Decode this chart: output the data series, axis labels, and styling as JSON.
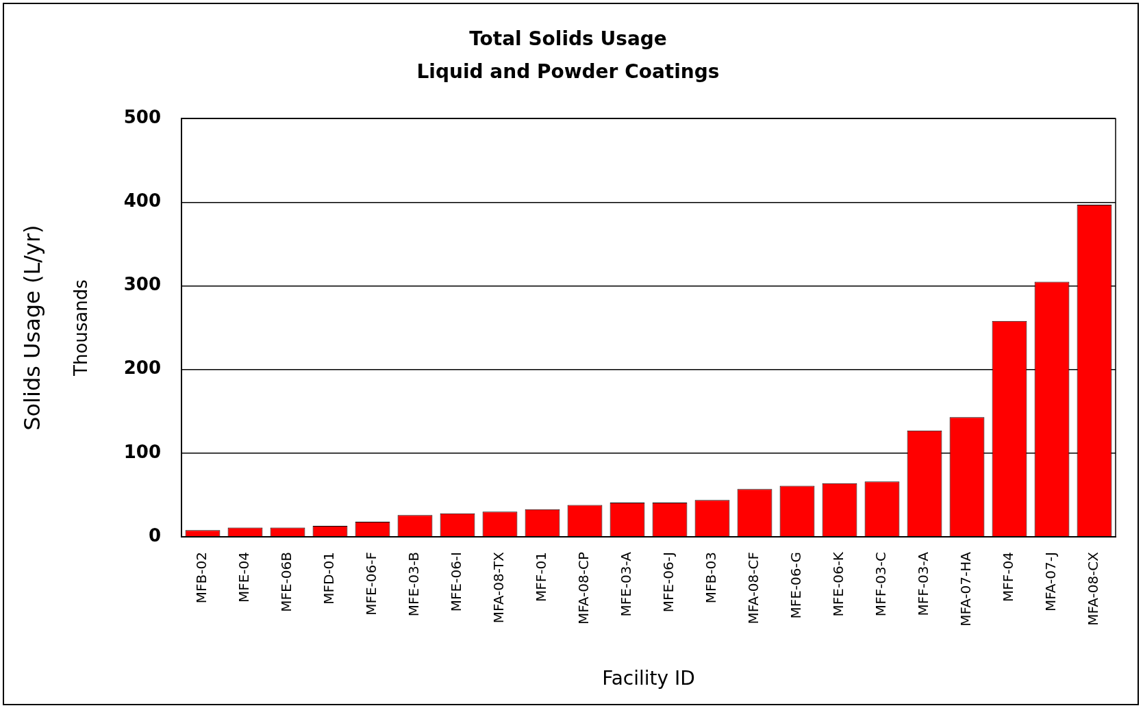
{
  "chart_data": {
    "type": "bar",
    "title": "Total Solids Usage",
    "subtitle": "Liquid and Powder Coatings",
    "xlabel": "Facility ID",
    "ylabel": "Solids Usage (L/yr)",
    "annotations": [
      "Thousands"
    ],
    "categories": [
      "MFB-02",
      "MFE-04",
      "MFE-06B",
      "MFD-01",
      "MFE-06-F",
      "MFE-03-B",
      "MFE-06-I",
      "MFA-08-TX",
      "MFF-01",
      "MFA-08-CP",
      "MFE-03-A",
      "MFE-06-J",
      "MFB-03",
      "MFA-08-CF",
      "MFE-06-G",
      "MFE-06-K",
      "MFF-03-C",
      "MFF-03-A",
      "MFA-07-HA",
      "MFF-04",
      "MFA-07-J",
      "MFA-08-CX"
    ],
    "values": [
      8,
      11,
      11,
      13,
      18,
      26,
      28,
      30,
      33,
      38,
      41,
      41,
      44,
      57,
      61,
      64,
      66,
      127,
      143,
      258,
      305,
      397
    ],
    "color": "#ff0000",
    "ylim": [
      0,
      500
    ],
    "yticks": [
      0,
      100,
      200,
      300,
      400,
      500
    ],
    "grid": "y",
    "legend": false
  }
}
